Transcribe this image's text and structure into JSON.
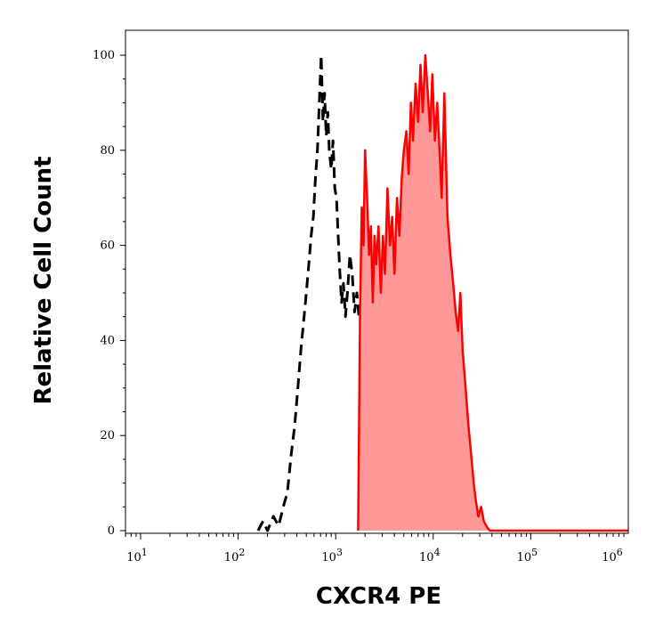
{
  "chart_data": {
    "type": "area",
    "title": "",
    "xlabel": "CXCR4  PE",
    "ylabel": "Relative Cell Count",
    "xscale": "log",
    "xlim": [
      7,
      1000000
    ],
    "ylim": [
      0,
      100
    ],
    "grid": false,
    "legend": "none",
    "y_ticks": [
      0,
      20,
      40,
      60,
      80,
      100
    ],
    "x_ticks": [
      {
        "base": "10",
        "exp": "1",
        "value": 10
      },
      {
        "base": "10",
        "exp": "2",
        "value": 100
      },
      {
        "base": "10",
        "exp": "3",
        "value": 1000
      },
      {
        "base": "10",
        "exp": "4",
        "value": 10000
      },
      {
        "base": "10",
        "exp": "5",
        "value": 100000
      },
      {
        "base": "10",
        "exp": "6",
        "value": 1000000
      }
    ],
    "series": [
      {
        "style": "dashed",
        "color": "#000000",
        "fill": "none",
        "x": [
          160,
          180,
          200,
          230,
          260,
          290,
          320,
          350,
          380,
          410,
          440,
          470,
          500,
          530,
          560,
          590,
          620,
          650,
          680,
          710,
          740,
          770,
          800,
          830,
          860,
          900,
          940,
          980,
          1020,
          1060,
          1100,
          1150,
          1200,
          1260,
          1320,
          1400,
          1480,
          1560,
          1650,
          1750
        ],
        "values": [
          0,
          2,
          0,
          3,
          1,
          5,
          8,
          16,
          22,
          30,
          38,
          44,
          50,
          56,
          62,
          66,
          74,
          80,
          90,
          100,
          86,
          92,
          83,
          88,
          80,
          76,
          82,
          72,
          70,
          62,
          55,
          48,
          52,
          45,
          50,
          58,
          54,
          46,
          50,
          44
        ]
      },
      {
        "style": "solid",
        "color": "#ff0000",
        "fill": "#ff9999",
        "x": [
          1700,
          1780,
          1850,
          1930,
          2000,
          2100,
          2200,
          2300,
          2400,
          2500,
          2600,
          2750,
          2900,
          3050,
          3200,
          3400,
          3600,
          3800,
          4000,
          4250,
          4500,
          4750,
          5000,
          5300,
          5600,
          5900,
          6200,
          6600,
          7000,
          7400,
          7800,
          8300,
          8800,
          9300,
          9800,
          10400,
          11000,
          11600,
          12200,
          13000,
          14000,
          15000,
          16000,
          17000,
          18000,
          19000,
          20000,
          21500,
          23000,
          24500,
          26000,
          27500,
          29000,
          31000,
          33000,
          35000,
          38000,
          41000,
          44000,
          50000,
          60000,
          100000,
          1000000
        ],
        "values": [
          0,
          46,
          68,
          60,
          80,
          70,
          58,
          64,
          48,
          62,
          56,
          64,
          50,
          62,
          54,
          72,
          60,
          66,
          54,
          70,
          62,
          74,
          80,
          84,
          75,
          90,
          82,
          94,
          86,
          98,
          88,
          100,
          92,
          84,
          96,
          82,
          90,
          80,
          70,
          92,
          66,
          58,
          52,
          46,
          42,
          50,
          38,
          30,
          22,
          16,
          10,
          6,
          3,
          5,
          2,
          1,
          0,
          0,
          0,
          0,
          0,
          0,
          0
        ]
      }
    ]
  }
}
